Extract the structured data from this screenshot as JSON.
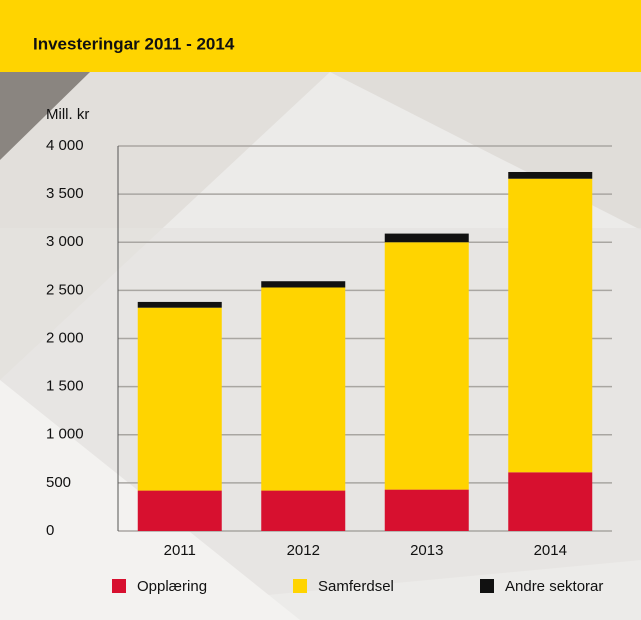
{
  "chart_data": {
    "type": "stacked_bar",
    "title": "Investeringar 2011 - 2014",
    "y_label": "Mill. kr",
    "categories": [
      "2011",
      "2012",
      "2013",
      "2014"
    ],
    "series": [
      {
        "name": "Opplæring",
        "color": "#d7102f",
        "values": [
          420,
          420,
          430,
          610
        ]
      },
      {
        "name": "Samferdsel",
        "color": "#ffd400",
        "values": [
          1900,
          2110,
          2570,
          3050
        ]
      },
      {
        "name": "Andre sektorar",
        "color": "#111111",
        "values": [
          60,
          65,
          90,
          70
        ]
      }
    ],
    "ylim": [
      0,
      4000
    ],
    "yticks": [
      0,
      500,
      {
        "value": 1000,
        "label": "1 000"
      },
      {
        "value": 1500,
        "label": "1 500"
      },
      {
        "value": 2000,
        "label": "2 000"
      },
      {
        "value": 2500,
        "label": "2 500"
      },
      {
        "value": 3000,
        "label": "3 000"
      },
      {
        "value": 3500,
        "label": "3 500"
      },
      {
        "value": 4000,
        "label": "4 000"
      }
    ],
    "grid": true,
    "legend": "bottom"
  }
}
